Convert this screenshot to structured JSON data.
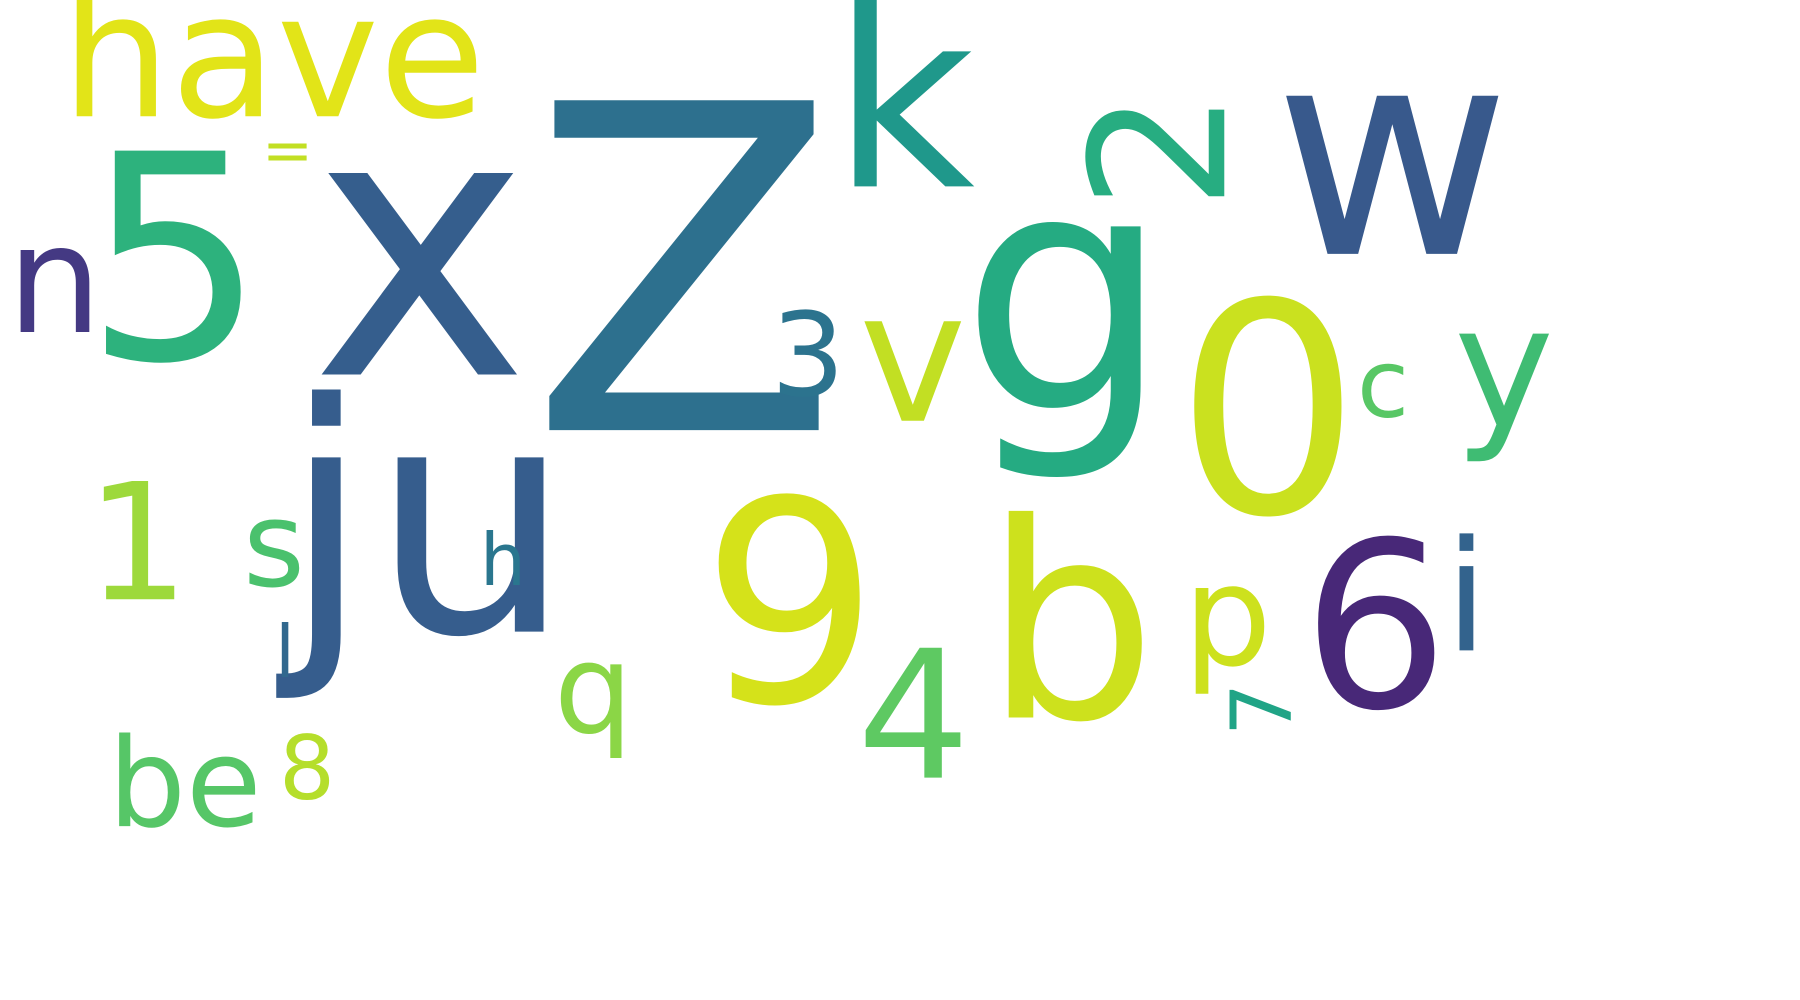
{
  "words": [
    {
      "text": "Z",
      "color": "#2d708e"
    },
    {
      "text": "x",
      "color": "#355e8d"
    },
    {
      "text": "g",
      "color": "#25ab82"
    },
    {
      "text": "0",
      "color": "#cae11f"
    },
    {
      "text": "w",
      "color": "#38598c"
    },
    {
      "text": "5",
      "color": "#2db27d"
    },
    {
      "text": "9",
      "color": "#d5e21a"
    },
    {
      "text": "b",
      "color": "#cde11d"
    },
    {
      "text": "1",
      "color": "#9dd93b"
    },
    {
      "text": "ju",
      "color": "#365d8d"
    },
    {
      "text": "6",
      "color": "#482878"
    },
    {
      "text": "k",
      "color": "#1f988b"
    },
    {
      "text": "have",
      "color": "#e2e418"
    },
    {
      "text": "2",
      "color": "#27ad81"
    },
    {
      "text": "n",
      "color": "#443983"
    },
    {
      "text": "4",
      "color": "#5ec962"
    },
    {
      "text": "v",
      "color": "#c2df23"
    },
    {
      "text": "y",
      "color": "#3fbc73"
    },
    {
      "text": "i",
      "color": "#33638d"
    },
    {
      "text": "3",
      "color": "#2c738e"
    },
    {
      "text": "be",
      "color": "#56c667"
    },
    {
      "text": "p",
      "color": "#cde11d"
    },
    {
      "text": "q",
      "color": "#8bd646"
    },
    {
      "text": "8",
      "color": "#b5de2b"
    },
    {
      "text": "7",
      "color": "#20a486"
    },
    {
      "text": "s",
      "color": "#4ac16d"
    },
    {
      "text": "c",
      "color": "#58c765"
    },
    {
      "text": "l",
      "color": "#31688e"
    },
    {
      "text": "h",
      "color": "#2a768e"
    },
    {
      "text": "=",
      "color": "#c2df23"
    }
  ]
}
